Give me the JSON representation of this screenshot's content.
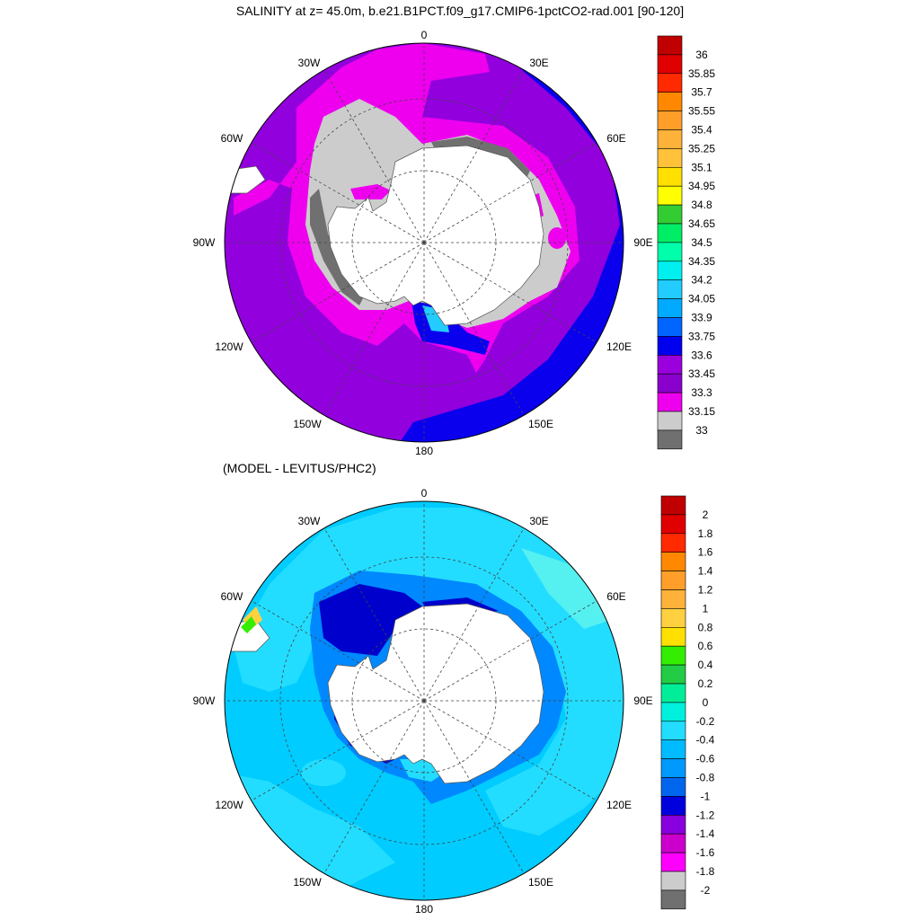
{
  "top_panel": {
    "title": "SALINITY at z=  45.0m, b.e21.B1PCT.f09_g17.CMIP6-1pctCO2-rad.001 [90-120]",
    "lon_labels": [
      "0",
      "30E",
      "60E",
      "90E",
      "120E",
      "150E",
      "180",
      "150W",
      "120W",
      "90W",
      "60W",
      "30W"
    ],
    "colorbar": {
      "labels": [
        "36",
        "35.85",
        "35.7",
        "35.55",
        "35.4",
        "35.25",
        "35.1",
        "34.95",
        "34.8",
        "34.65",
        "34.5",
        "34.35",
        "34.2",
        "34.05",
        "33.9",
        "33.75",
        "33.6",
        "33.45",
        "33.3",
        "33.15",
        "33"
      ],
      "colors": [
        "#c00000",
        "#e00000",
        "#ff2a00",
        "#ff8800",
        "#ff9f2a",
        "#ffb23a",
        "#ffc23a",
        "#ffe000",
        "#ffff00",
        "#33cc33",
        "#00ee66",
        "#00ffaa",
        "#00f0f0",
        "#22ccff",
        "#00aaff",
        "#0066ff",
        "#0000ee",
        "#9900dd",
        "#8a00cc",
        "#ee00ee",
        "#cccccc",
        "#707070"
      ]
    }
  },
  "bottom_panel": {
    "title": "(MODEL - LEVITUS/PHC2)",
    "lon_labels": [
      "0",
      "30E",
      "60E",
      "90E",
      "120E",
      "150E",
      "180",
      "150W",
      "120W",
      "90W",
      "60W",
      "30W"
    ],
    "colorbar": {
      "labels": [
        "2",
        "1.8",
        "1.6",
        "1.4",
        "1.2",
        "1",
        "0.8",
        "0.6",
        "0.4",
        "0.2",
        "0",
        "-0.2",
        "-0.4",
        "-0.6",
        "-0.8",
        "-1",
        "-1.2",
        "-1.4",
        "-1.6",
        "-1.8",
        "-2"
      ],
      "colors": [
        "#c00000",
        "#e00000",
        "#ff2a00",
        "#ff8800",
        "#ff9f2a",
        "#ffb23a",
        "#ffd040",
        "#ffe000",
        "#33ee00",
        "#22cc44",
        "#00ee99",
        "#00f0dd",
        "#22ddff",
        "#00bbff",
        "#0099ff",
        "#0066ee",
        "#0000dd",
        "#8800dd",
        "#cc00cc",
        "#ff00ff",
        "#cccccc",
        "#707070"
      ]
    }
  },
  "colors": {
    "ocean_top": "#9100dd",
    "magenta": "#ee00ee",
    "blue": "#0a00ee",
    "light_gray": "#cccccc",
    "dark_gray": "#707070",
    "ocean_bottom": "#00ccff",
    "cyan": "#22ddff",
    "mid_blue": "#0088ff",
    "deep_blue": "#0000cc",
    "land": "#ffffff"
  }
}
